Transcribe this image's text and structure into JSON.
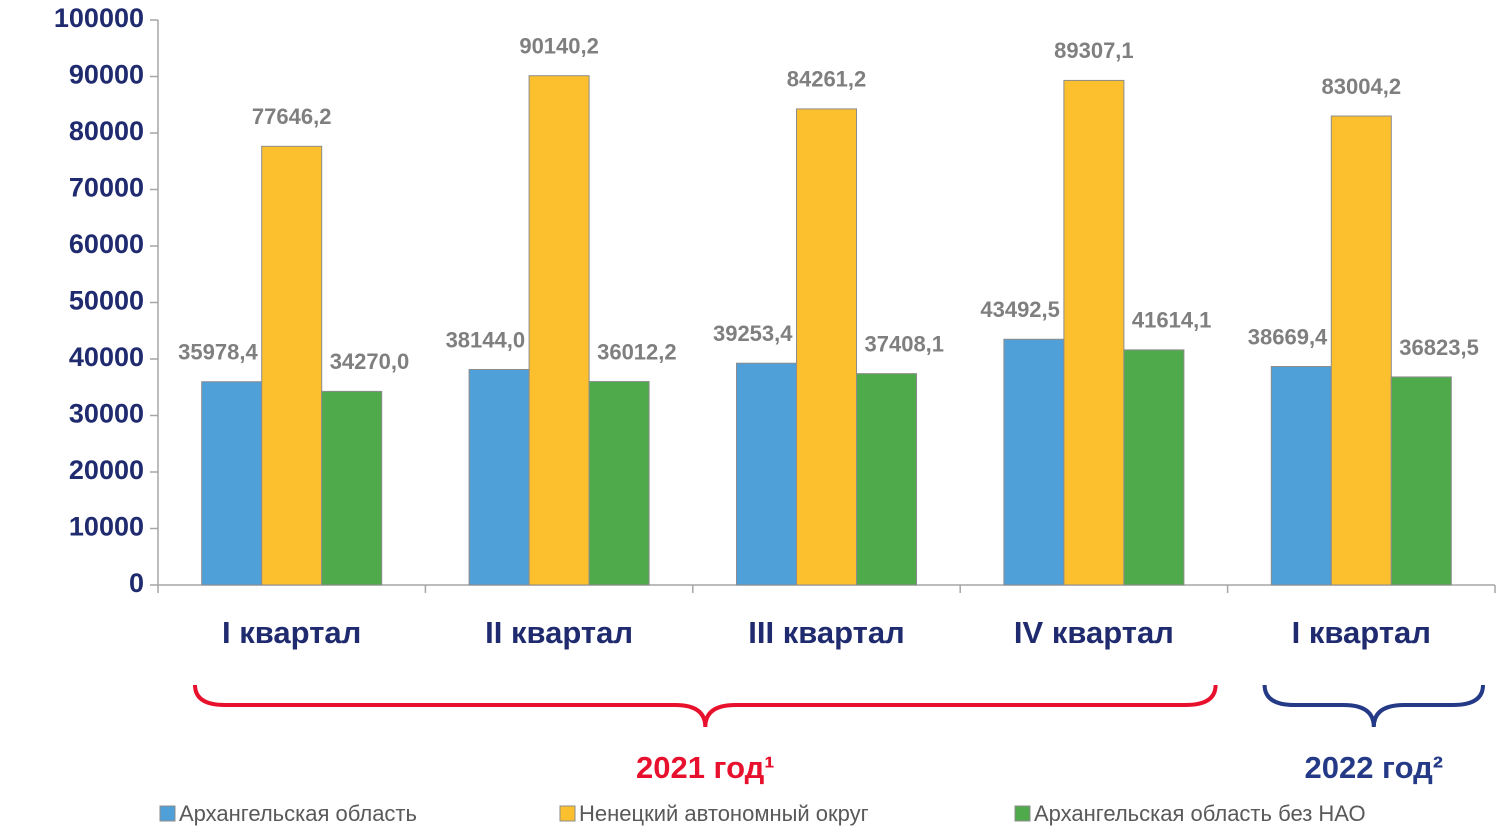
{
  "chart_data": {
    "type": "bar",
    "categories": [
      "I квартал",
      "II квартал",
      "III квартал",
      "IV квартал",
      "I квартал"
    ],
    "series": [
      {
        "name": "Архангельская область",
        "color": "#4f9fd8",
        "values": [
          35978.4,
          38144.0,
          39253.4,
          43492.5,
          38669.4
        ],
        "value_labels": [
          "35978,4",
          "38144,0",
          "39253,4",
          "43492,5",
          "38669,4"
        ]
      },
      {
        "name": "Ненецкий автономный округ",
        "color": "#fcc02e",
        "values": [
          77646.2,
          90140.2,
          84261.2,
          89307.1,
          83004.2
        ],
        "value_labels": [
          "77646,2",
          "90140,2",
          "84261,2",
          "89307,1",
          "83004,2"
        ]
      },
      {
        "name": "Архангельская область без НАО",
        "color": "#4eaa4a",
        "values": [
          34270.0,
          36012.2,
          37408.1,
          41614.1,
          36823.5
        ],
        "value_labels": [
          "34270,0",
          "36012,2",
          "37408,1",
          "41614,1",
          "36823,5"
        ]
      }
    ],
    "ylim": [
      0,
      100000
    ],
    "yticks": [
      0,
      10000,
      20000,
      30000,
      40000,
      50000,
      60000,
      70000,
      80000,
      90000,
      100000
    ],
    "annotations": [
      {
        "text": "2021 год¹",
        "color": "#e8112d"
      },
      {
        "text": "2022 год²",
        "color": "#253a87"
      }
    ],
    "legend": "bottom"
  }
}
